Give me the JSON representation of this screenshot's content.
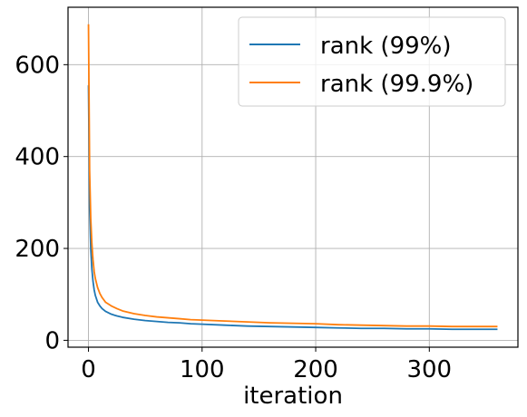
{
  "chart_data": {
    "type": "line",
    "title": "",
    "xlabel": "iteration",
    "ylabel": "",
    "xlim": [
      -18,
      378
    ],
    "ylim": [
      -15,
      725
    ],
    "grid": true,
    "legend_position": "top-right",
    "x_ticks": [
      0,
      100,
      200,
      300
    ],
    "y_ticks": [
      0,
      200,
      400,
      600
    ],
    "series": [
      {
        "name": "rank (99%)",
        "color": "#1f77b4",
        "points": [
          [
            0,
            555
          ],
          [
            1,
            290
          ],
          [
            2,
            200
          ],
          [
            3,
            155
          ],
          [
            4,
            128
          ],
          [
            5,
            110
          ],
          [
            6,
            98
          ],
          [
            8,
            83
          ],
          [
            10,
            75
          ],
          [
            12,
            69
          ],
          [
            15,
            63
          ],
          [
            20,
            57
          ],
          [
            25,
            53
          ],
          [
            30,
            50
          ],
          [
            40,
            46
          ],
          [
            50,
            43
          ],
          [
            60,
            41
          ],
          [
            70,
            39
          ],
          [
            80,
            38
          ],
          [
            90,
            36
          ],
          [
            100,
            35
          ],
          [
            120,
            33
          ],
          [
            140,
            31
          ],
          [
            160,
            30
          ],
          [
            180,
            29
          ],
          [
            200,
            28
          ],
          [
            220,
            27
          ],
          [
            240,
            26
          ],
          [
            260,
            26
          ],
          [
            280,
            25
          ],
          [
            300,
            25
          ],
          [
            320,
            24
          ],
          [
            340,
            24
          ],
          [
            360,
            24
          ]
        ]
      },
      {
        "name": "rank (99.9%)",
        "color": "#ff7f0e",
        "points": [
          [
            0,
            688
          ],
          [
            1,
            370
          ],
          [
            2,
            265
          ],
          [
            3,
            210
          ],
          [
            4,
            175
          ],
          [
            5,
            150
          ],
          [
            6,
            135
          ],
          [
            8,
            115
          ],
          [
            10,
            102
          ],
          [
            12,
            93
          ],
          [
            15,
            83
          ],
          [
            20,
            75
          ],
          [
            25,
            69
          ],
          [
            30,
            64
          ],
          [
            40,
            58
          ],
          [
            50,
            54
          ],
          [
            60,
            51
          ],
          [
            70,
            49
          ],
          [
            80,
            47
          ],
          [
            90,
            45
          ],
          [
            100,
            44
          ],
          [
            120,
            42
          ],
          [
            140,
            40
          ],
          [
            160,
            38
          ],
          [
            180,
            37
          ],
          [
            200,
            36
          ],
          [
            220,
            34
          ],
          [
            240,
            33
          ],
          [
            260,
            32
          ],
          [
            280,
            31
          ],
          [
            300,
            31
          ],
          [
            320,
            30
          ],
          [
            340,
            30
          ],
          [
            360,
            30
          ]
        ]
      }
    ]
  }
}
